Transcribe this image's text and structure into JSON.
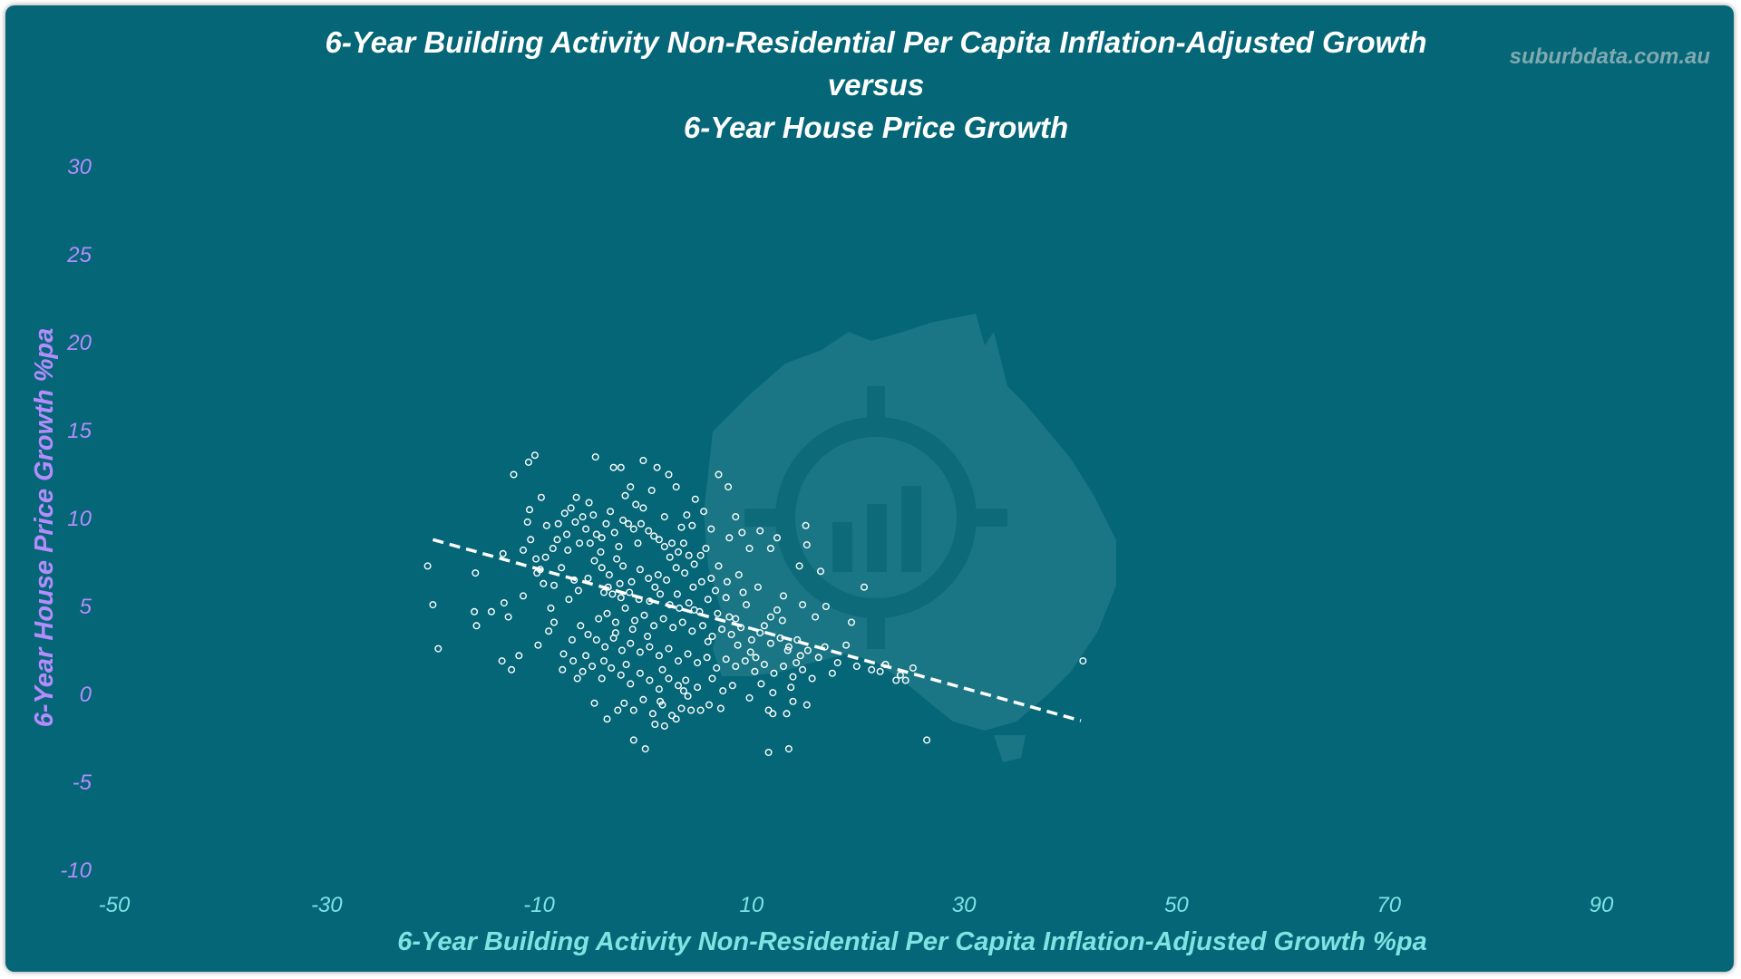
{
  "title_lines": [
    "6-Year Building Activity Non-Residential Per Capita Inflation-Adjusted Growth",
    "versus",
    "6-Year House Price Growth"
  ],
  "watermark": "suburbdata.com.au",
  "colors": {
    "background": "#046676",
    "title": "#ffffff",
    "x_axis_text": "#7fe3e3",
    "y_axis_text": "#b48cff",
    "markers": "#ffffff",
    "trendline": "#ffffff",
    "logo": "#1a7684"
  },
  "logo_icon": "australia-map-target-chart-icon",
  "chart_data": {
    "type": "scatter",
    "xlabel": "6-Year Building Activity Non-Residential Per Capita Inflation-Adjusted Growth %pa",
    "ylabel": "6-Year House Price Growth %pa",
    "xlim": [
      -50,
      90
    ],
    "ylim": [
      -10,
      30
    ],
    "xticks": [
      "-50",
      "-30",
      "-10",
      "10",
      "30",
      "50",
      "70",
      "90"
    ],
    "yticks": [
      "30",
      "25",
      "20",
      "15",
      "10",
      "5",
      "0",
      "-5",
      "-10"
    ],
    "grid": false,
    "legend": "none",
    "trendline": {
      "style": "dashed",
      "x": [
        -20,
        41
      ],
      "y": [
        8.8,
        -1.5
      ]
    },
    "points": [
      [
        -20.5,
        7.3
      ],
      [
        -20,
        5.1
      ],
      [
        -19.5,
        2.6
      ],
      [
        -16.1,
        4.7
      ],
      [
        -15.9,
        3.9
      ],
      [
        -16,
        6.9
      ],
      [
        -14.5,
        4.7
      ],
      [
        -13.5,
        1.9
      ],
      [
        -13.4,
        8
      ],
      [
        -12.6,
        1.4
      ],
      [
        -12.4,
        12.5
      ],
      [
        -11,
        13.2
      ],
      [
        -10.4,
        13.6
      ],
      [
        -11.5,
        8.2
      ],
      [
        -11.1,
        9.8
      ],
      [
        -10.8,
        8.8
      ],
      [
        -10.3,
        7.7
      ],
      [
        -9.9,
        7.1
      ],
      [
        -9.6,
        6.3
      ],
      [
        -10.9,
        10.5
      ],
      [
        -10.2,
        6.9
      ],
      [
        -9.4,
        7.8
      ],
      [
        -8.2,
        9.7
      ],
      [
        -7.4,
        9.1
      ],
      [
        -7,
        10.6
      ],
      [
        -6.6,
        9.8
      ],
      [
        -8.7,
        8.3
      ],
      [
        -7.9,
        7.2
      ],
      [
        -7.3,
        8.2
      ],
      [
        -6.7,
        6.5
      ],
      [
        -6.2,
        8.6
      ],
      [
        -5.6,
        9.4
      ],
      [
        -5.2,
        8.6
      ],
      [
        -5.3,
        10.9
      ],
      [
        -4.9,
        10.2
      ],
      [
        -4.6,
        9.1
      ],
      [
        -4.2,
        8.1
      ],
      [
        -3.7,
        9.7
      ],
      [
        -3.3,
        10.4
      ],
      [
        -2.9,
        9.2
      ],
      [
        -2.5,
        8.4
      ],
      [
        -2.1,
        9.9
      ],
      [
        -1.6,
        9.7
      ],
      [
        -1.1,
        9.4
      ],
      [
        -0.7,
        8.6
      ],
      [
        -0.2,
        10.6
      ],
      [
        0.3,
        9.3
      ],
      [
        0.8,
        9
      ],
      [
        1.3,
        8.8
      ],
      [
        1.8,
        8.4
      ],
      [
        2.5,
        8.6
      ],
      [
        3.1,
        8.1
      ],
      [
        3.6,
        8.6
      ],
      [
        4.1,
        7.9
      ],
      [
        4.6,
        7.4
      ],
      [
        -4.8,
        7.6
      ],
      [
        -4.1,
        7.2
      ],
      [
        -3.4,
        6.8
      ],
      [
        -2.7,
        7.7
      ],
      [
        -2.1,
        7.3
      ],
      [
        -1.3,
        6.4
      ],
      [
        -0.5,
        7.1
      ],
      [
        0.3,
        6.6
      ],
      [
        1.2,
        6.8
      ],
      [
        2,
        6.5
      ],
      [
        2.9,
        7.2
      ],
      [
        3.7,
        6.9
      ],
      [
        4.5,
        6.1
      ],
      [
        5.3,
        6.4
      ],
      [
        6.2,
        6.6
      ],
      [
        -3.9,
        5.8
      ],
      [
        -3.1,
        5.7
      ],
      [
        -2.3,
        5.5
      ],
      [
        -1.5,
        5.8
      ],
      [
        -0.6,
        5.4
      ],
      [
        0.4,
        5.3
      ],
      [
        1.4,
        5.7
      ],
      [
        2.3,
        5.1
      ],
      [
        3.2,
        4.9
      ],
      [
        4.1,
        5.2
      ],
      [
        5.1,
        4.7
      ],
      [
        5.9,
        5.4
      ],
      [
        6.8,
        4.6
      ],
      [
        7.6,
        5.5
      ],
      [
        8.5,
        4.3
      ],
      [
        -4.4,
        4.3
      ],
      [
        -3.6,
        4.6
      ],
      [
        -2.8,
        4.1
      ],
      [
        -1.9,
        4.9
      ],
      [
        -1,
        4.2
      ],
      [
        -0.1,
        4.5
      ],
      [
        0.8,
        3.9
      ],
      [
        1.7,
        4.3
      ],
      [
        2.6,
        3.8
      ],
      [
        3.5,
        4.1
      ],
      [
        4.4,
        3.6
      ],
      [
        5.4,
        3.9
      ],
      [
        6.3,
        3.3
      ],
      [
        7.2,
        3.7
      ],
      [
        8.1,
        3.4
      ],
      [
        9,
        3.8
      ],
      [
        10,
        3.1
      ],
      [
        10.8,
        3.5
      ],
      [
        11.8,
        2.9
      ],
      [
        12.7,
        3.2
      ],
      [
        13.5,
        2.7
      ],
      [
        14.3,
        3.1
      ],
      [
        -6.1,
        3.9
      ],
      [
        -5.4,
        3.4
      ],
      [
        -4.6,
        3.1
      ],
      [
        -3.8,
        2.7
      ],
      [
        -3,
        3.2
      ],
      [
        -2.2,
        2.5
      ],
      [
        -1.4,
        2.9
      ],
      [
        -0.5,
        2.4
      ],
      [
        0.4,
        2.7
      ],
      [
        1.3,
        2.2
      ],
      [
        2.2,
        2.6
      ],
      [
        3.1,
        1.9
      ],
      [
        4,
        2.3
      ],
      [
        4.9,
        1.8
      ],
      [
        5.8,
        2.1
      ],
      [
        6.7,
        1.5
      ],
      [
        7.6,
        2
      ],
      [
        8.5,
        1.6
      ],
      [
        9.4,
        1.9
      ],
      [
        10.3,
        1.3
      ],
      [
        11.2,
        1.7
      ],
      [
        12.1,
        1.2
      ],
      [
        13,
        1.6
      ],
      [
        13.9,
        1
      ],
      [
        14.8,
        1.4
      ],
      [
        15.7,
        0.9
      ],
      [
        -7.7,
        2.3
      ],
      [
        -6.8,
        1.9
      ],
      [
        -5.9,
        1.3
      ],
      [
        -5,
        1.6
      ],
      [
        -4.1,
        0.9
      ],
      [
        -3.2,
        1.5
      ],
      [
        -2.3,
        1.1
      ],
      [
        -1.4,
        0.6
      ],
      [
        -0.5,
        1.2
      ],
      [
        0.4,
        0.8
      ],
      [
        1.3,
        0.3
      ],
      [
        2.2,
        0.9
      ],
      [
        3.1,
        0.5
      ],
      [
        4,
        -0.1
      ],
      [
        4.9,
        0.4
      ],
      [
        -2,
        -0.5
      ],
      [
        -1.1,
        -0.9
      ],
      [
        -0.2,
        -0.3
      ],
      [
        0.7,
        -1.1
      ],
      [
        1.6,
        -0.6
      ],
      [
        2.5,
        -1.2
      ],
      [
        3.4,
        -0.8
      ],
      [
        -3.6,
        -1.4
      ],
      [
        -1.1,
        -2.6
      ],
      [
        0,
        -3.1
      ],
      [
        1.8,
        -1.8
      ],
      [
        5.2,
        -0.9
      ],
      [
        11.6,
        -0.9
      ],
      [
        13.3,
        -1.1
      ],
      [
        11.6,
        -3.3
      ],
      [
        13.5,
        -3.1
      ],
      [
        12,
        -1.1
      ],
      [
        21.3,
        1.4
      ],
      [
        22.1,
        1.3
      ],
      [
        22.6,
        1.7
      ],
      [
        23.6,
        0.8
      ],
      [
        24,
        1.1
      ],
      [
        24.5,
        0.8
      ],
      [
        25.2,
        1.5
      ],
      [
        26.5,
        -2.6
      ],
      [
        41.2,
        1.9
      ],
      [
        20.6,
        6.1
      ],
      [
        19.4,
        4.1
      ],
      [
        17,
        5
      ],
      [
        16.9,
        2.7
      ],
      [
        16.5,
        7
      ],
      [
        15.1,
        9.6
      ],
      [
        15.2,
        8.5
      ],
      [
        14.5,
        7.3
      ],
      [
        12.4,
        8.9
      ],
      [
        11.8,
        8.3
      ],
      [
        10.8,
        9.3
      ],
      [
        9.8,
        8.3
      ],
      [
        9.1,
        9.2
      ],
      [
        8.5,
        10.1
      ],
      [
        7.8,
        11.8
      ],
      [
        6.9,
        12.5
      ],
      [
        5.5,
        10.4
      ],
      [
        4.7,
        11.1
      ],
      [
        2.9,
        11.8
      ],
      [
        2.2,
        12.5
      ],
      [
        1.1,
        12.9
      ],
      [
        -0.2,
        13.3
      ],
      [
        -1.4,
        11.8
      ],
      [
        -2.3,
        12.9
      ],
      [
        -3,
        12.9
      ],
      [
        -4.7,
        13.5
      ],
      [
        3.9,
        10.2
      ],
      [
        6.2,
        9.4
      ],
      [
        7.9,
        8.9
      ],
      [
        13,
        5.6
      ],
      [
        11.8,
        4.4
      ],
      [
        10.6,
        6.1
      ],
      [
        9.2,
        5.8
      ],
      [
        14.8,
        5.1
      ],
      [
        16,
        4.4
      ],
      [
        17.6,
        1.2
      ],
      [
        18.9,
        2.8
      ],
      [
        16.3,
        2.1
      ],
      [
        14.2,
        1.8
      ],
      [
        13.4,
        2.5
      ],
      [
        12.4,
        4.8
      ],
      [
        10.9,
        0.6
      ],
      [
        9.8,
        -0.2
      ],
      [
        7.1,
        -0.8
      ],
      [
        6.3,
        0.9
      ],
      [
        8.2,
        0.5
      ],
      [
        9.9,
        2.4
      ],
      [
        15.2,
        -0.6
      ],
      [
        13.9,
        -0.4
      ],
      [
        -8.6,
        6.2
      ],
      [
        -8.9,
        4.9
      ],
      [
        -9.1,
        3.6
      ],
      [
        -7.2,
        5.4
      ],
      [
        -6.3,
        5.9
      ],
      [
        -5.4,
        6.6
      ],
      [
        -6.9,
        3.1
      ],
      [
        -7.8,
        1.4
      ],
      [
        -8.6,
        4.1
      ],
      [
        -10.1,
        2.8
      ],
      [
        -11.5,
        5.6
      ],
      [
        -12.9,
        4.4
      ],
      [
        -11.9,
        2.2
      ],
      [
        -13.3,
        5.2
      ],
      [
        -4.1,
        8.9
      ],
      [
        -3.5,
        6.1
      ],
      [
        -2.8,
        3.5
      ],
      [
        -2.4,
        6.3
      ],
      [
        -1.8,
        1.7
      ],
      [
        -1.2,
        3.7
      ],
      [
        -0.4,
        9.7
      ],
      [
        0.2,
        3.3
      ],
      [
        0.9,
        6.1
      ],
      [
        1.6,
        1.4
      ],
      [
        2.3,
        7.8
      ],
      [
        3,
        5.7
      ],
      [
        3.8,
        0.8
      ],
      [
        4.6,
        4.8
      ],
      [
        5.2,
        7.9
      ],
      [
        5.9,
        3
      ],
      [
        6.6,
        5.9
      ],
      [
        7.3,
        0.2
      ],
      [
        7.9,
        4.4
      ],
      [
        8.7,
        2.8
      ],
      [
        9.5,
        5.1
      ],
      [
        10.4,
        2.1
      ],
      [
        11.2,
        3.9
      ],
      [
        12,
        0.1
      ],
      [
        12.9,
        4.2
      ],
      [
        13.7,
        0.4
      ],
      [
        14.6,
        2.2
      ],
      [
        15.3,
        2.5
      ],
      [
        18.1,
        1.8
      ],
      [
        19.9,
        1.6
      ],
      [
        -5.9,
        10.1
      ],
      [
        -6.5,
        11.2
      ],
      [
        -7.6,
        10.3
      ],
      [
        -8.3,
        8.8
      ],
      [
        -9.3,
        9.6
      ],
      [
        -9.8,
        11.2
      ],
      [
        -1.9,
        11.3
      ],
      [
        -0.9,
        10.8
      ],
      [
        0.6,
        11.6
      ],
      [
        1.8,
        10.1
      ],
      [
        3.4,
        9.5
      ],
      [
        4.4,
        9.6
      ],
      [
        5.7,
        8.3
      ],
      [
        6.9,
        7.3
      ],
      [
        7.7,
        6.4
      ],
      [
        8.8,
        6.8
      ],
      [
        -3.9,
        1.9
      ],
      [
        -5.6,
        2.2
      ],
      [
        -6.4,
        0.9
      ],
      [
        -4.8,
        -0.5
      ],
      [
        -2.6,
        -0.9
      ],
      [
        0.9,
        -1.7
      ],
      [
        2.9,
        -1.4
      ],
      [
        4.3,
        -0.9
      ],
      [
        6,
        -0.6
      ],
      [
        1.4,
        -0.4
      ],
      [
        3.6,
        0.2
      ]
    ]
  }
}
